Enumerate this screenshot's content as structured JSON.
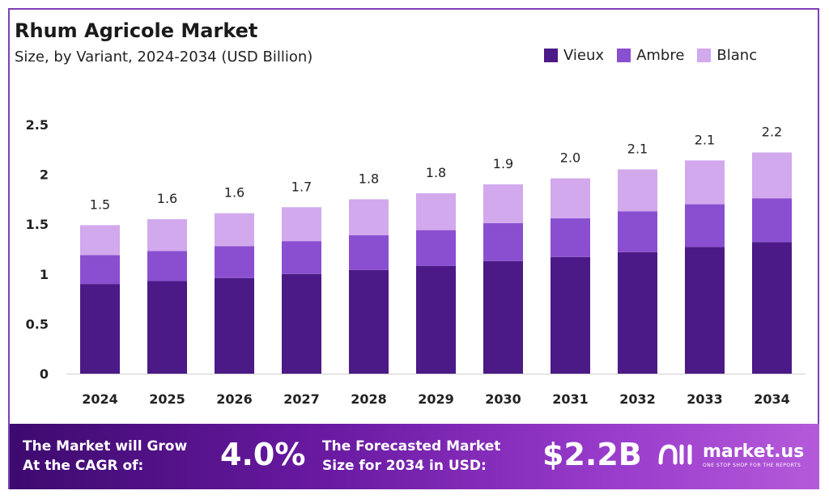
{
  "header": {
    "title": "Rhum Agricole Market",
    "subtitle": "Size, by Variant, 2024-2034 (USD Billion)"
  },
  "colors": {
    "Vieux": "#4b1a86",
    "Ambre": "#8a4fd0",
    "Blanc": "#d1a9ec",
    "banner_start": "#3d0a6e",
    "banner_end": "#b45ad9",
    "frame": "#7e3fb8"
  },
  "chart_data": {
    "type": "bar",
    "stacked": true,
    "categories": [
      "2024",
      "2025",
      "2026",
      "2027",
      "2028",
      "2029",
      "2030",
      "2031",
      "2032",
      "2033",
      "2034"
    ],
    "series": [
      {
        "name": "Vieux",
        "values": [
          0.9,
          0.93,
          0.96,
          1.0,
          1.04,
          1.08,
          1.13,
          1.17,
          1.22,
          1.27,
          1.32
        ]
      },
      {
        "name": "Ambre",
        "values": [
          0.29,
          0.3,
          0.32,
          0.33,
          0.35,
          0.36,
          0.38,
          0.39,
          0.41,
          0.43,
          0.44
        ]
      },
      {
        "name": "Blanc",
        "values": [
          0.3,
          0.32,
          0.33,
          0.34,
          0.36,
          0.37,
          0.39,
          0.4,
          0.42,
          0.44,
          0.46
        ]
      }
    ],
    "totals_labels": [
      "1.5",
      "1.6",
      "1.6",
      "1.7",
      "1.8",
      "1.8",
      "1.9",
      "2.0",
      "2.1",
      "2.1",
      "2.2"
    ],
    "y_ticks": [
      "0",
      "0.5",
      "1",
      "1.5",
      "2",
      "2.5"
    ],
    "ylim": [
      0,
      2.5
    ],
    "xlabel": "",
    "ylabel": "",
    "legend": "top-right",
    "grid": false
  },
  "banner": {
    "cagr_text_line1": "The Market will Grow",
    "cagr_text_line2": "At the CAGR of:",
    "cagr_value": "4.0%",
    "forecast_text_line1": "The Forecasted Market",
    "forecast_text_line2": "Size for 2034 in USD:",
    "forecast_value": "$2.2B",
    "logo_name": "market.us",
    "logo_tagline": "ONE STOP SHOP FOR THE REPORTS"
  }
}
